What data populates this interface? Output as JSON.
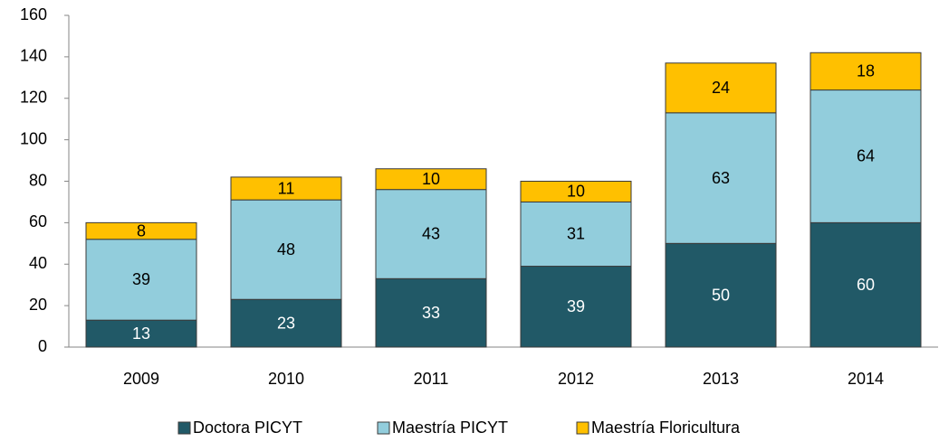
{
  "chart_data": {
    "type": "stacked_bar",
    "categories": [
      "2009",
      "2010",
      "2011",
      "2012",
      "2013",
      "2014"
    ],
    "series": [
      {
        "name": "Doctora PICYT",
        "color": "#215967",
        "values": [
          13,
          23,
          33,
          39,
          50,
          60
        ]
      },
      {
        "name": "Maestría PICYT",
        "color": "#92cddc",
        "values": [
          39,
          48,
          43,
          31,
          63,
          64
        ]
      },
      {
        "name": "Maestría Floricultura",
        "color": "#ffc000",
        "values": [
          8,
          11,
          10,
          10,
          24,
          18
        ]
      }
    ],
    "ylim": [
      0,
      160
    ],
    "yticks": [
      0,
      20,
      40,
      60,
      80,
      100,
      120,
      140,
      160
    ],
    "grid": false,
    "legend": "bottom"
  }
}
